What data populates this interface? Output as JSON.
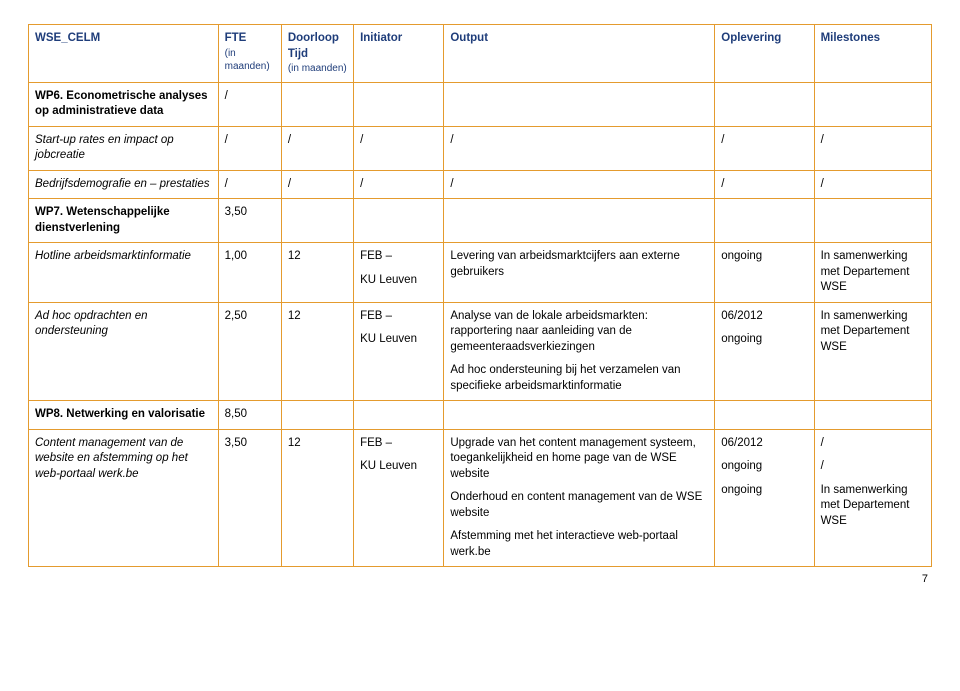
{
  "colors": {
    "border": "#e49b2e",
    "header": "#1f3d7a"
  },
  "colwidths": [
    "21%",
    "7%",
    "8%",
    "10%",
    "30%",
    "11%",
    "13%"
  ],
  "header": {
    "col1": "WSE_CELM",
    "col2": "FTE",
    "col2_sub": "(in maanden)",
    "col3a": "Doorloop Tijd",
    "col3_sub": "(in maanden)",
    "col4": "Initiator",
    "col5": "Output",
    "col6": "Oplevering",
    "col7": "Milestones"
  },
  "rows": [
    {
      "c1": "WP6. Econometrische analyses op administratieve data",
      "c1_bold": true,
      "c2": "/",
      "c3": "",
      "c4": "",
      "c5": "",
      "c6": "",
      "c7": ""
    },
    {
      "c1": "Start-up rates en impact op jobcreatie",
      "c1_italic": true,
      "c2": "/",
      "c3": "/",
      "c4": "/",
      "c5": "/",
      "c6": "/",
      "c7": "/"
    },
    {
      "c1": "Bedrijfsdemografie en – prestaties",
      "c1_italic": true,
      "c2": "/",
      "c3": "/",
      "c4": "/",
      "c5": "/",
      "c6": "/",
      "c7": "/"
    },
    {
      "c1": "WP7. Wetenschappelijke dienstverlening",
      "c1_bold": true,
      "c2": "3,50",
      "c3": "",
      "c4": "",
      "c5": "",
      "c6": "",
      "c7": ""
    },
    {
      "c1": "Hotline arbeidsmarktinformatie",
      "c1_italic": true,
      "c2": "1,00",
      "c3": "12",
      "c4_lines": [
        "FEB –",
        "KU Leuven"
      ],
      "c5": "Levering van arbeidsmarktcijfers aan externe gebruikers",
      "c6": "ongoing",
      "c7": "In samenwerking met Departement WSE"
    },
    {
      "c1": "Ad hoc opdrachten en ondersteuning",
      "c1_italic": true,
      "c2": "2,50",
      "c3": "12",
      "c4_lines": [
        "FEB –",
        "KU Leuven"
      ],
      "c5_lines": [
        "Analyse van de lokale arbeidsmarkten: rapportering naar aanleiding van de gemeenteraadsverkiezingen",
        "Ad hoc ondersteuning bij het verzamelen van specifieke arbeidsmarktinformatie"
      ],
      "c6_lines": [
        "06/2012",
        "ongoing"
      ],
      "c7": "In samenwerking met Departement WSE"
    },
    {
      "c1": "WP8. Netwerking en valorisatie",
      "c1_bold": true,
      "c2": "8,50",
      "c3": "",
      "c4": "",
      "c5": "",
      "c6": "",
      "c7": ""
    },
    {
      "c1": "Content management van de website en afstemming op het web-portaal werk.be",
      "c1_italic": true,
      "c2": "3,50",
      "c3": "12",
      "c4_lines": [
        "FEB –",
        "KU Leuven"
      ],
      "c5_lines": [
        "Upgrade van het content management systeem, toegankelijkheid en home page van de WSE website",
        "Onderhoud en content management van de WSE website",
        "Afstemming met het interactieve web-portaal werk.be"
      ],
      "c6_lines": [
        "06/2012",
        "ongoing",
        "ongoing"
      ],
      "c7_lines": [
        "/",
        "/",
        "In samenwerking met Departement WSE"
      ]
    }
  ],
  "page_number": "7"
}
